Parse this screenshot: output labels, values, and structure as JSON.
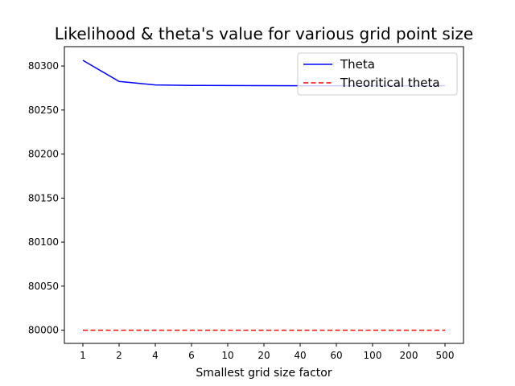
{
  "chart_data": {
    "type": "line",
    "title": "Likelihood & theta's value for various grid point size",
    "xlabel": "Smallest grid size factor",
    "ylabel": "",
    "categories": [
      "1",
      "2",
      "4",
      "6",
      "10",
      "20",
      "40",
      "60",
      "100",
      "200",
      "500"
    ],
    "ylim": [
      79985,
      80322
    ],
    "yticks": [
      80000,
      80050,
      80100,
      80150,
      80200,
      80250,
      80300
    ],
    "grid": false,
    "legend_position": "top-right",
    "series": [
      {
        "name": "Theta",
        "color": "#0000ff",
        "style": "solid",
        "values": [
          80306.5,
          80282.5,
          80278.5,
          80278.0,
          80277.8,
          80277.7,
          80277.6,
          80277.6,
          80277.6,
          80277.6,
          80277.6
        ]
      },
      {
        "name": "Theoritical theta",
        "color": "#ff0000",
        "style": "dashed",
        "values": [
          80000,
          80000,
          80000,
          80000,
          80000,
          80000,
          80000,
          80000,
          80000,
          80000,
          80000
        ]
      }
    ]
  }
}
